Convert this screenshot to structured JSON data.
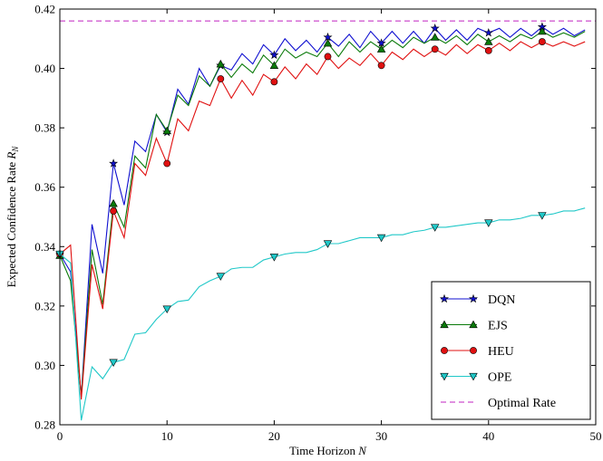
{
  "chart_data": {
    "type": "line",
    "title": "",
    "xlabel": "Time Horizon ",
    "xlabel_var": "N",
    "ylabel": "Expected Confidence Rate ",
    "ylabel_var": "R",
    "ylabel_sub": "N",
    "xlim": [
      0,
      50
    ],
    "ylim": [
      0.28,
      0.42
    ],
    "xticks": [
      "0",
      "10",
      "20",
      "30",
      "40",
      "50"
    ],
    "yticks": [
      "0.28",
      "0.30",
      "0.32",
      "0.34",
      "0.36",
      "0.38",
      "0.40",
      "0.42"
    ],
    "grid": false,
    "legend_position": "bottom-right",
    "x": [
      0,
      1,
      2,
      3,
      4,
      5,
      6,
      7,
      8,
      9,
      10,
      11,
      12,
      13,
      14,
      15,
      16,
      17,
      18,
      19,
      20,
      21,
      22,
      23,
      24,
      25,
      26,
      27,
      28,
      29,
      30,
      31,
      32,
      33,
      34,
      35,
      36,
      37,
      38,
      39,
      40,
      41,
      42,
      43,
      44,
      45,
      46,
      47,
      48,
      49
    ],
    "series": [
      {
        "name": "DQN",
        "color": "#1010d0",
        "marker": "star",
        "marker_every": [
          0,
          5,
          10,
          15,
          20,
          25,
          30,
          35,
          40,
          45
        ],
        "values": [
          0.3375,
          0.3315,
          0.2895,
          0.3475,
          0.331,
          0.368,
          0.354,
          0.3755,
          0.372,
          0.3845,
          0.3785,
          0.393,
          0.388,
          0.4,
          0.394,
          0.401,
          0.3995,
          0.405,
          0.4015,
          0.408,
          0.4045,
          0.41,
          0.406,
          0.4095,
          0.4055,
          0.4105,
          0.4075,
          0.4115,
          0.407,
          0.4125,
          0.4085,
          0.4125,
          0.4085,
          0.4125,
          0.4085,
          0.4135,
          0.4095,
          0.413,
          0.4095,
          0.4135,
          0.412,
          0.4135,
          0.4105,
          0.4135,
          0.411,
          0.414,
          0.4115,
          0.4135,
          0.411,
          0.413
        ]
      },
      {
        "name": "EJS",
        "color": "#0a7a0a",
        "marker": "triangle-up",
        "marker_every": [
          0,
          5,
          10,
          15,
          20,
          25,
          30,
          35,
          40,
          45
        ],
        "values": [
          0.337,
          0.3285,
          0.2895,
          0.339,
          0.3205,
          0.3545,
          0.3465,
          0.3705,
          0.3665,
          0.3845,
          0.379,
          0.391,
          0.3875,
          0.3975,
          0.394,
          0.4015,
          0.397,
          0.4015,
          0.3985,
          0.4045,
          0.401,
          0.4065,
          0.4035,
          0.4055,
          0.404,
          0.4085,
          0.404,
          0.409,
          0.4055,
          0.409,
          0.4065,
          0.4095,
          0.407,
          0.4105,
          0.4085,
          0.4105,
          0.4085,
          0.411,
          0.408,
          0.4115,
          0.409,
          0.411,
          0.409,
          0.4115,
          0.41,
          0.4125,
          0.4105,
          0.412,
          0.4105,
          0.4125
        ]
      },
      {
        "name": "HEU",
        "color": "#e01010",
        "marker": "circle",
        "marker_every": [
          0,
          5,
          10,
          15,
          20,
          25,
          30,
          35,
          40,
          45
        ],
        "values": [
          0.3375,
          0.3405,
          0.2885,
          0.334,
          0.319,
          0.352,
          0.343,
          0.368,
          0.364,
          0.3765,
          0.368,
          0.383,
          0.379,
          0.389,
          0.3875,
          0.3965,
          0.39,
          0.396,
          0.391,
          0.398,
          0.3955,
          0.4005,
          0.3965,
          0.4015,
          0.398,
          0.404,
          0.4,
          0.4035,
          0.401,
          0.405,
          0.401,
          0.4055,
          0.403,
          0.4065,
          0.404,
          0.4065,
          0.4045,
          0.408,
          0.405,
          0.408,
          0.406,
          0.4085,
          0.406,
          0.409,
          0.407,
          0.409,
          0.4075,
          0.409,
          0.4075,
          0.409
        ]
      },
      {
        "name": "OPE",
        "color": "#20c8c8",
        "marker": "triangle-down",
        "marker_every": [
          0,
          5,
          10,
          15,
          20,
          25,
          30,
          35,
          40,
          45
        ],
        "values": [
          0.3375,
          0.3345,
          0.2815,
          0.2995,
          0.2955,
          0.301,
          0.302,
          0.3105,
          0.311,
          0.3155,
          0.319,
          0.3215,
          0.322,
          0.3265,
          0.3285,
          0.33,
          0.3325,
          0.333,
          0.333,
          0.3355,
          0.3365,
          0.3375,
          0.338,
          0.338,
          0.339,
          0.341,
          0.341,
          0.342,
          0.343,
          0.343,
          0.343,
          0.344,
          0.344,
          0.345,
          0.3455,
          0.3465,
          0.3465,
          0.347,
          0.3475,
          0.348,
          0.348,
          0.349,
          0.349,
          0.3495,
          0.3505,
          0.3505,
          0.351,
          0.352,
          0.352,
          0.353
        ]
      }
    ],
    "reference_line": {
      "name": "Optimal Rate",
      "color": "#c020c0",
      "style": "dashed",
      "y": 0.416
    }
  }
}
